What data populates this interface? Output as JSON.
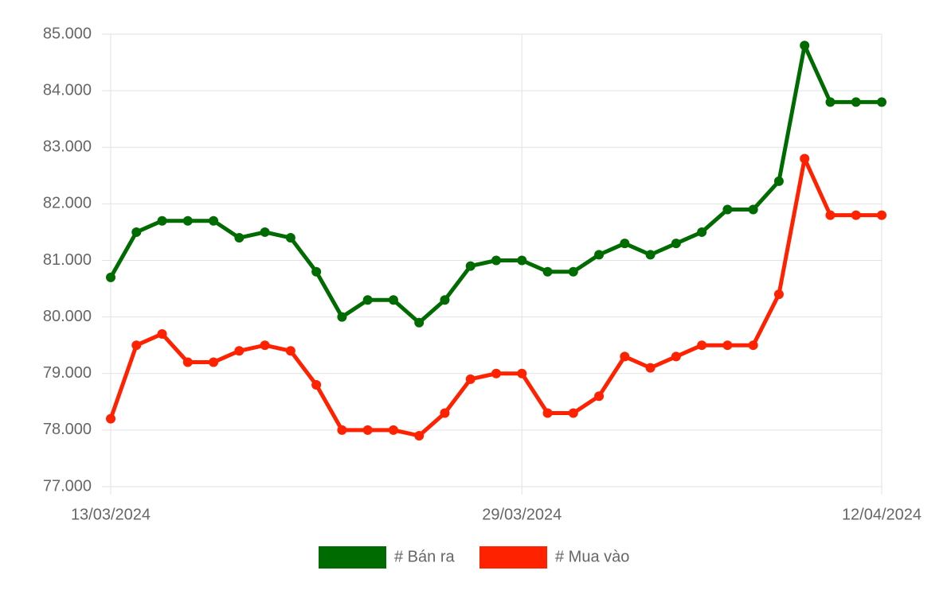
{
  "chart_data": {
    "type": "line",
    "categories": [
      "13/03/2024",
      null,
      null,
      null,
      null,
      null,
      null,
      null,
      null,
      null,
      null,
      null,
      null,
      null,
      null,
      null,
      "29/03/2024",
      null,
      null,
      null,
      null,
      null,
      null,
      null,
      null,
      null,
      null,
      null,
      null,
      null,
      "12/04/2024"
    ],
    "series": [
      {
        "name": "# Bán ra",
        "color": "#006b00",
        "values": [
          80700,
          81500,
          81700,
          81700,
          81700,
          81400,
          81500,
          81400,
          80800,
          80000,
          80300,
          80300,
          79900,
          80300,
          80900,
          81000,
          81000,
          80800,
          80800,
          81100,
          81300,
          81100,
          81300,
          81500,
          81900,
          81900,
          82400,
          84800,
          83800,
          83800,
          83800
        ]
      },
      {
        "name": "# Mua vào",
        "color": "#ff2200",
        "values": [
          78200,
          79500,
          79700,
          79200,
          79200,
          79400,
          79500,
          79400,
          78800,
          78000,
          78000,
          78000,
          77900,
          78300,
          78900,
          79000,
          79000,
          78300,
          78300,
          78600,
          79300,
          79100,
          79300,
          79500,
          79500,
          79500,
          80400,
          82800,
          81800,
          81800,
          81800
        ]
      }
    ],
    "ylim": [
      77000,
      85000
    ],
    "yticks": [
      {
        "value": 77000,
        "label": "77.000"
      },
      {
        "value": 78000,
        "label": "78.000"
      },
      {
        "value": 79000,
        "label": "79.000"
      },
      {
        "value": 80000,
        "label": "80.000"
      },
      {
        "value": 81000,
        "label": "81.000"
      },
      {
        "value": 82000,
        "label": "82.000"
      },
      {
        "value": 83000,
        "label": "83.000"
      },
      {
        "value": 84000,
        "label": "84.000"
      },
      {
        "value": 85000,
        "label": "85.000"
      }
    ],
    "grid": true,
    "legend": "bottom"
  }
}
